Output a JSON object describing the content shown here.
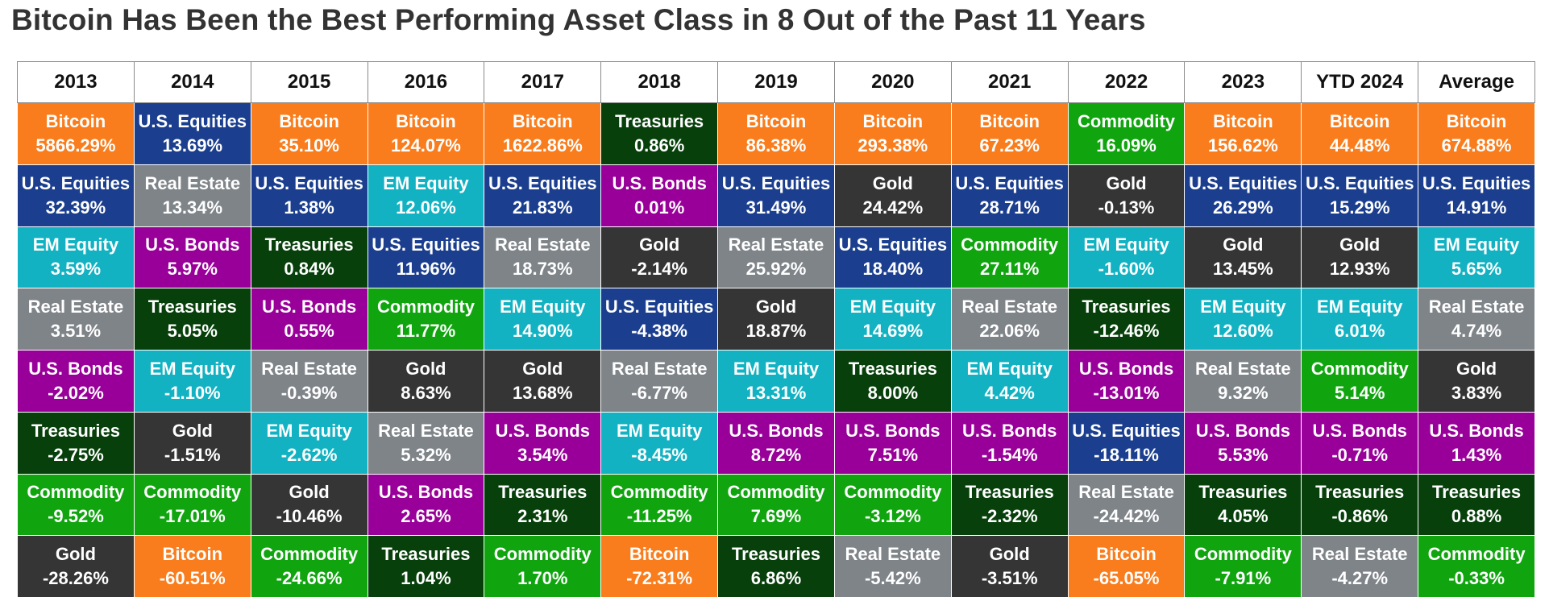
{
  "title": "Bitcoin Has Been the Best Performing Asset Class in 8 Out of the Past 11 Years",
  "colors": {
    "Bitcoin": "#f97d1c",
    "U.S. Equities": "#1b3f8e",
    "EM Equity": "#13b2c2",
    "Real Estate": "#7f8489",
    "U.S. Bonds": "#990099",
    "Treasuries": "#07400b",
    "Commodity": "#10a50f",
    "Gold": "#353535"
  },
  "chart_data": {
    "type": "table",
    "columns": [
      "2013",
      "2014",
      "2015",
      "2016",
      "2017",
      "2018",
      "2019",
      "2020",
      "2021",
      "2022",
      "2023",
      "YTD 2024",
      "Average"
    ],
    "rows": [
      [
        [
          "Bitcoin",
          "5866.29%"
        ],
        [
          "U.S. Equities",
          "13.69%"
        ],
        [
          "Bitcoin",
          "35.10%"
        ],
        [
          "Bitcoin",
          "124.07%"
        ],
        [
          "Bitcoin",
          "1622.86%"
        ],
        [
          "Treasuries",
          "0.86%"
        ],
        [
          "Bitcoin",
          "86.38%"
        ],
        [
          "Bitcoin",
          "293.38%"
        ],
        [
          "Bitcoin",
          "67.23%"
        ],
        [
          "Commodity",
          "16.09%"
        ],
        [
          "Bitcoin",
          "156.62%"
        ],
        [
          "Bitcoin",
          "44.48%"
        ],
        [
          "Bitcoin",
          "674.88%"
        ]
      ],
      [
        [
          "U.S. Equities",
          "32.39%"
        ],
        [
          "Real Estate",
          "13.34%"
        ],
        [
          "U.S. Equities",
          "1.38%"
        ],
        [
          "EM Equity",
          "12.06%"
        ],
        [
          "U.S. Equities",
          "21.83%"
        ],
        [
          "U.S. Bonds",
          "0.01%"
        ],
        [
          "U.S. Equities",
          "31.49%"
        ],
        [
          "Gold",
          "24.42%"
        ],
        [
          "U.S. Equities",
          "28.71%"
        ],
        [
          "Gold",
          "-0.13%"
        ],
        [
          "U.S. Equities",
          "26.29%"
        ],
        [
          "U.S. Equities",
          "15.29%"
        ],
        [
          "U.S. Equities",
          "14.91%"
        ]
      ],
      [
        [
          "EM Equity",
          "3.59%"
        ],
        [
          "U.S. Bonds",
          "5.97%"
        ],
        [
          "Treasuries",
          "0.84%"
        ],
        [
          "U.S. Equities",
          "11.96%"
        ],
        [
          "Real Estate",
          "18.73%"
        ],
        [
          "Gold",
          "-2.14%"
        ],
        [
          "Real Estate",
          "25.92%"
        ],
        [
          "U.S. Equities",
          "18.40%"
        ],
        [
          "Commodity",
          "27.11%"
        ],
        [
          "EM Equity",
          "-1.60%"
        ],
        [
          "Gold",
          "13.45%"
        ],
        [
          "Gold",
          "12.93%"
        ],
        [
          "EM Equity",
          "5.65%"
        ]
      ],
      [
        [
          "Real Estate",
          "3.51%"
        ],
        [
          "Treasuries",
          "5.05%"
        ],
        [
          "U.S. Bonds",
          "0.55%"
        ],
        [
          "Commodity",
          "11.77%"
        ],
        [
          "EM Equity",
          "14.90%"
        ],
        [
          "U.S. Equities",
          "-4.38%"
        ],
        [
          "Gold",
          "18.87%"
        ],
        [
          "EM Equity",
          "14.69%"
        ],
        [
          "Real Estate",
          "22.06%"
        ],
        [
          "Treasuries",
          "-12.46%"
        ],
        [
          "EM Equity",
          "12.60%"
        ],
        [
          "EM Equity",
          "6.01%"
        ],
        [
          "Real Estate",
          "4.74%"
        ]
      ],
      [
        [
          "U.S. Bonds",
          "-2.02%"
        ],
        [
          "EM Equity",
          "-1.10%"
        ],
        [
          "Real Estate",
          "-0.39%"
        ],
        [
          "Gold",
          "8.63%"
        ],
        [
          "Gold",
          "13.68%"
        ],
        [
          "Real Estate",
          "-6.77%"
        ],
        [
          "EM Equity",
          "13.31%"
        ],
        [
          "Treasuries",
          "8.00%"
        ],
        [
          "EM Equity",
          "4.42%"
        ],
        [
          "U.S. Bonds",
          "-13.01%"
        ],
        [
          "Real Estate",
          "9.32%"
        ],
        [
          "Commodity",
          "5.14%"
        ],
        [
          "Gold",
          "3.83%"
        ]
      ],
      [
        [
          "Treasuries",
          "-2.75%"
        ],
        [
          "Gold",
          "-1.51%"
        ],
        [
          "EM Equity",
          "-2.62%"
        ],
        [
          "Real Estate",
          "5.32%"
        ],
        [
          "U.S. Bonds",
          "3.54%"
        ],
        [
          "EM Equity",
          "-8.45%"
        ],
        [
          "U.S. Bonds",
          "8.72%"
        ],
        [
          "U.S. Bonds",
          "7.51%"
        ],
        [
          "U.S. Bonds",
          "-1.54%"
        ],
        [
          "U.S. Equities",
          "-18.11%"
        ],
        [
          "U.S. Bonds",
          "5.53%"
        ],
        [
          "U.S. Bonds",
          "-0.71%"
        ],
        [
          "U.S. Bonds",
          "1.43%"
        ]
      ],
      [
        [
          "Commodity",
          "-9.52%"
        ],
        [
          "Commodity",
          "-17.01%"
        ],
        [
          "Gold",
          "-10.46%"
        ],
        [
          "U.S. Bonds",
          "2.65%"
        ],
        [
          "Treasuries",
          "2.31%"
        ],
        [
          "Commodity",
          "-11.25%"
        ],
        [
          "Commodity",
          "7.69%"
        ],
        [
          "Commodity",
          "-3.12%"
        ],
        [
          "Treasuries",
          "-2.32%"
        ],
        [
          "Real Estate",
          "-24.42%"
        ],
        [
          "Treasuries",
          "4.05%"
        ],
        [
          "Treasuries",
          "-0.86%"
        ],
        [
          "Treasuries",
          "0.88%"
        ]
      ],
      [
        [
          "Gold",
          "-28.26%"
        ],
        [
          "Bitcoin",
          "-60.51%"
        ],
        [
          "Commodity",
          "-24.66%"
        ],
        [
          "Treasuries",
          "1.04%"
        ],
        [
          "Commodity",
          "1.70%"
        ],
        [
          "Bitcoin",
          "-72.31%"
        ],
        [
          "Treasuries",
          "6.86%"
        ],
        [
          "Real Estate",
          "-5.42%"
        ],
        [
          "Gold",
          "-3.51%"
        ],
        [
          "Bitcoin",
          "-65.05%"
        ],
        [
          "Commodity",
          "-7.91%"
        ],
        [
          "Real Estate",
          "-4.27%"
        ],
        [
          "Commodity",
          "-0.33%"
        ]
      ]
    ]
  }
}
